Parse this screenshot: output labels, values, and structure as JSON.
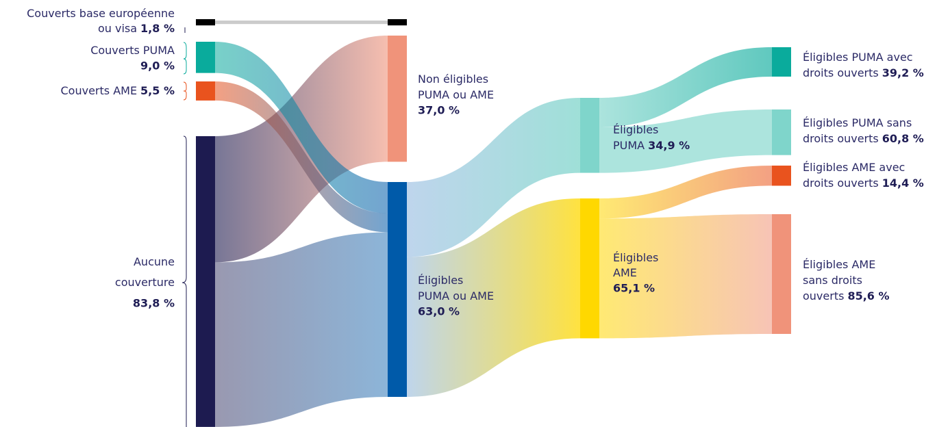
{
  "chart_data": {
    "type": "sankey",
    "nodes": [
      {
        "name": [
          "Couverts base européenne",
          "ou visa"
        ],
        "value": 1.8,
        "value_label": "1,8 %",
        "color": "#000000"
      },
      {
        "name": [
          "Couverts PUMA"
        ],
        "value": 9.0,
        "value_label": "9,0 %",
        "color": "#0aab9c"
      },
      {
        "name": [
          "Couverts AME"
        ],
        "value": 5.5,
        "value_label": "5,5 %",
        "color": "#e9531e"
      },
      {
        "name": [
          "Aucune",
          "couverture"
        ],
        "value": 83.8,
        "value_label": "83,8 %",
        "color": "#1d1b50"
      },
      {
        "name": [
          "Non éligibles",
          "PUMA ou AME"
        ],
        "value": 37.0,
        "value_label": "37,0 %",
        "color": "#f0937a"
      },
      {
        "name": [
          "Éligibles",
          "PUMA ou AME"
        ],
        "value": 63.0,
        "value_label": "63,0 %",
        "color": "#005aa9"
      },
      {
        "name": [
          "Éligibles",
          "PUMA"
        ],
        "value": 34.9,
        "value_label": "34,9 %",
        "color": "#7fd5cb"
      },
      {
        "name": [
          "Éligibles",
          "AME"
        ],
        "value": 65.1,
        "value_label": "65,1 %",
        "color": "#ffd800"
      },
      {
        "name": [
          "Éligibles PUMA avec",
          "droits ouverts"
        ],
        "value": 39.2,
        "value_label": "39,2 %",
        "color": "#0aab9c"
      },
      {
        "name": [
          "Éligibles PUMA sans",
          "droits ouverts"
        ],
        "value": 60.8,
        "value_label": "60,8 %",
        "color": "#7fd5cb"
      },
      {
        "name": [
          "Éligibles AME avec",
          "droits ouverts"
        ],
        "value": 14.4,
        "value_label": "14,4 %",
        "color": "#e9531e"
      },
      {
        "name": [
          "Éligibles AME",
          "sans droits",
          "ouverts"
        ],
        "value": 85.6,
        "value_label": "85,6 %",
        "color": "#f0937a"
      }
    ]
  }
}
